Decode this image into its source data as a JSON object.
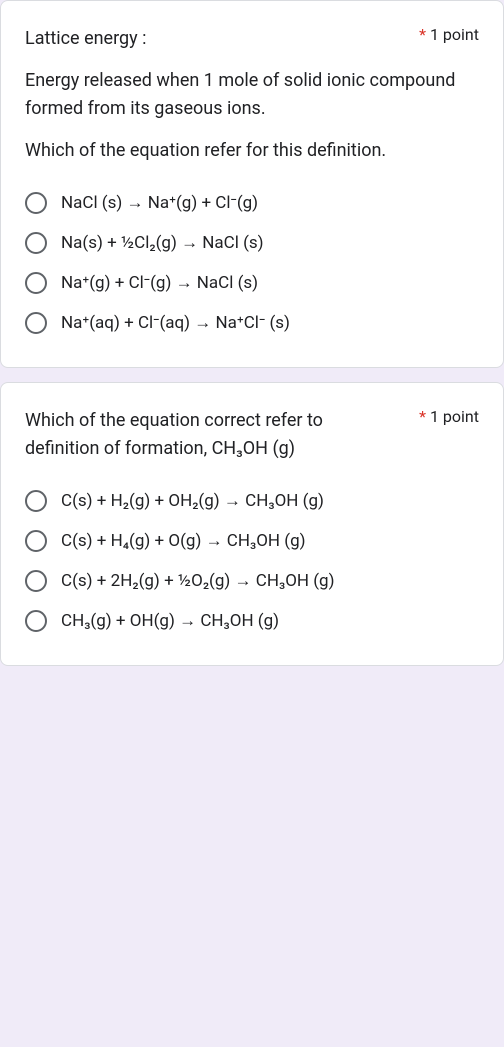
{
  "questions": [
    {
      "title": "Lattice energy :",
      "required_mark": "*",
      "points": "1 point",
      "descriptions": [
        "Energy released when 1 mole of solid ionic compound formed from its gaseous ions.",
        "Which of the equation refer for this definition."
      ],
      "options": [
        "NaCl (s) → Na⁺(g) + Cl⁻(g)",
        "Na(s) + ½Cl₂(g) → NaCl (s)",
        "Na⁺(g) + Cl⁻(g) → NaCl (s)",
        "Na⁺(aq) + Cl⁻(aq) → Na⁺Cl⁻ (s)"
      ]
    },
    {
      "title": "Which of the equation correct refer to definition of formation, CH₃OH (g)",
      "required_mark": "*",
      "points": "1 point",
      "descriptions": [],
      "options": [
        "C(s) + H₂(g) + OH₂(g) → CH₃OH (g)",
        "C(s) + H₄(g) + O(g) → CH₃OH (g)",
        "C(s) + 2H₂(g) + ½O₂(g) → CH₃OH (g)",
        "CH₃(g) + OH(g) → CH₃OH (g)"
      ]
    }
  ],
  "style": {
    "background": "#f0ebf8",
    "card_bg": "#ffffff",
    "border_color": "#dadce0",
    "text_color": "#202124",
    "required_color": "#d93025",
    "radio_border": "#5f6368",
    "title_fontsize": 18,
    "option_fontsize": 17
  }
}
